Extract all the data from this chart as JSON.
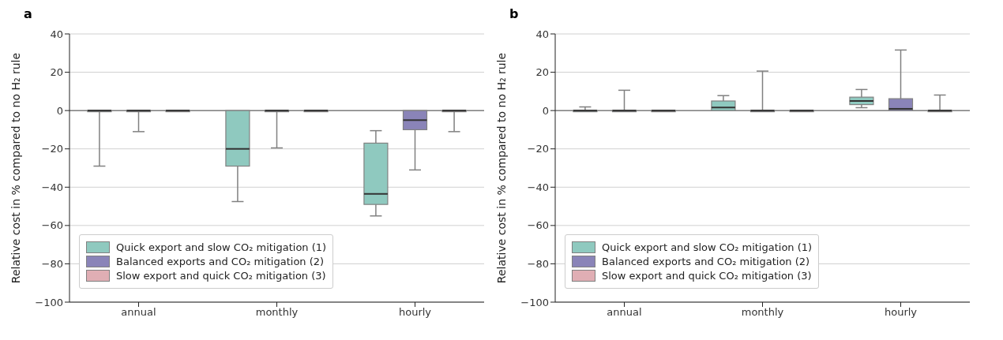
{
  "chart_data": [
    {
      "type": "box",
      "title": "a",
      "ylabel": "Relative cost in % compared to no H₂ rule",
      "categories": [
        "annual",
        "monthly",
        "hourly"
      ],
      "ylim": [
        -100,
        40
      ],
      "yticks": [
        -100,
        -80,
        -60,
        -40,
        -20,
        0,
        20,
        40
      ],
      "grid": "y",
      "legend": "bottom left",
      "ref_lines": [
        {
          "axis": "y",
          "value": 0,
          "color": "#808080"
        }
      ],
      "series": [
        {
          "name": "Quick export and slow CO₂ mitigation (1)",
          "color": "#8fc9bf",
          "boxes": [
            {
              "low": -29,
              "q1": 0,
              "median": 0,
              "q3": 0,
              "high": 0
            },
            {
              "low": -47.5,
              "q1": -29,
              "median": -20,
              "q3": 0,
              "high": 0
            },
            {
              "low": -55,
              "q1": -49,
              "median": -43.5,
              "q3": -17,
              "high": -10.5
            }
          ]
        },
        {
          "name": "Balanced exports and CO₂ mitigation (2)",
          "color": "#8a84b8",
          "boxes": [
            {
              "low": -11,
              "q1": 0,
              "median": 0,
              "q3": 0,
              "high": 0
            },
            {
              "low": -19.5,
              "q1": 0,
              "median": 0,
              "q3": 0,
              "high": 0
            },
            {
              "low": -31,
              "q1": -10,
              "median": -5,
              "q3": 0,
              "high": 0
            }
          ]
        },
        {
          "name": "Slow export and quick CO₂ mitigation (3)",
          "color": "#e0aeb4",
          "boxes": [
            {
              "low": 0,
              "q1": 0,
              "median": 0,
              "q3": 0,
              "high": 0
            },
            {
              "low": 0,
              "q1": 0,
              "median": 0,
              "q3": 0,
              "high": 0
            },
            {
              "low": -11,
              "q1": 0,
              "median": 0,
              "q3": 0,
              "high": 0
            }
          ]
        }
      ]
    },
    {
      "type": "box",
      "title": "b",
      "ylabel": "Relative cost in % compared to no H₂ rule",
      "categories": [
        "annual",
        "monthly",
        "hourly"
      ],
      "ylim": [
        -100,
        40
      ],
      "yticks": [
        -100,
        -80,
        -60,
        -40,
        -20,
        0,
        20,
        40
      ],
      "grid": "y",
      "legend": "bottom left",
      "ref_lines": [
        {
          "axis": "y",
          "value": 0,
          "color": "#808080"
        }
      ],
      "series": [
        {
          "name": "Quick export and slow CO₂ mitigation (1)",
          "color": "#8fc9bf",
          "boxes": [
            {
              "low": 0,
              "q1": 0,
              "median": 0,
              "q3": 0,
              "high": 1.9
            },
            {
              "low": 0,
              "q1": 0,
              "median": 1.6,
              "q3": 5,
              "high": 7.8
            },
            {
              "low": 1.5,
              "q1": 3.1,
              "median": 5,
              "q3": 7,
              "high": 11
            }
          ]
        },
        {
          "name": "Balanced exports and CO₂ mitigation (2)",
          "color": "#8a84b8",
          "boxes": [
            {
              "low": 0,
              "q1": 0,
              "median": 0,
              "q3": 0,
              "high": 10.6
            },
            {
              "low": 0,
              "q1": 0,
              "median": 0,
              "q3": 0,
              "high": 20.6
            },
            {
              "low": 0,
              "q1": 0,
              "median": 0.9,
              "q3": 6.2,
              "high": 31.6
            }
          ]
        },
        {
          "name": "Slow export and quick CO₂ mitigation (3)",
          "color": "#e0aeb4",
          "boxes": [
            {
              "low": 0,
              "q1": 0,
              "median": 0,
              "q3": 0,
              "high": 0
            },
            {
              "low": 0,
              "q1": 0,
              "median": 0,
              "q3": 0,
              "high": 0
            },
            {
              "low": 0,
              "q1": 0,
              "median": 0,
              "q3": 0,
              "high": 8.1
            }
          ]
        }
      ]
    }
  ]
}
